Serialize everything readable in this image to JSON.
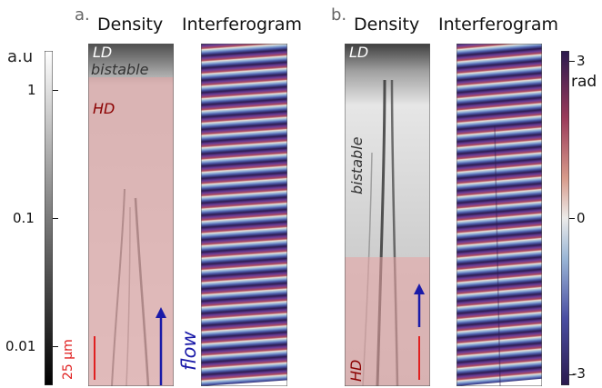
{
  "figure": {
    "panels": [
      {
        "letter": "a.",
        "density_title": "Density",
        "interferogram_title": "Interferogram",
        "regions": {
          "ld": "LD",
          "bistable": "bistable",
          "hd": "HD"
        },
        "scalebar_label": "25 µm",
        "flow_label": "flow"
      },
      {
        "letter": "b.",
        "density_title": "Density",
        "interferogram_title": "Interferogram",
        "regions": {
          "ld": "LD",
          "bistable": "bistable",
          "hd": "HD"
        }
      }
    ],
    "density_colorbar": {
      "unit": "a.u",
      "scale": "log",
      "ticks": [
        "1",
        "0.1",
        "0.01"
      ],
      "colormap": "gray"
    },
    "phase_colorbar": {
      "unit": "rad",
      "ticks": [
        "3",
        "0",
        "-3"
      ],
      "colormap": "twilight"
    }
  },
  "colors": {
    "hd_overlay": "#e8a3a3",
    "scalebar": "#e02020",
    "flow_arrow": "#1a1aa8",
    "hd_text": "#8b0000",
    "ld_text": "#ffffff"
  }
}
